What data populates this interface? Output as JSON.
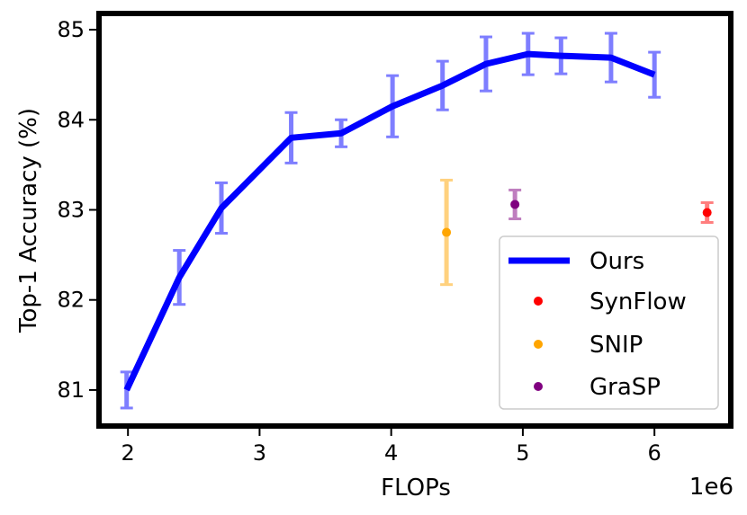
{
  "chart_data": {
    "type": "line",
    "xlabel": "FLOPs",
    "ylabel": "Top-1 Accuracy (%)",
    "x_offset_label": "1e6",
    "xlim": [
      1.78,
      6.58
    ],
    "ylim": [
      80.6,
      85.18
    ],
    "xticks": [
      2,
      3,
      4,
      5,
      6
    ],
    "xtick_labels": [
      "2",
      "3",
      "4",
      "5",
      "6"
    ],
    "yticks": [
      81,
      82,
      83,
      84,
      85
    ],
    "ytick_labels": [
      "81",
      "82",
      "83",
      "84",
      "85"
    ],
    "grid": false,
    "legend_position": "lower-right",
    "series": [
      {
        "name": "Ours",
        "kind": "line",
        "color": "#0000ff",
        "x": [
          1.99,
          2.39,
          2.71,
          3.24,
          3.62,
          4.01,
          4.39,
          4.72,
          5.04,
          5.29,
          5.67,
          6.0
        ],
        "y": [
          81.0,
          82.25,
          83.02,
          83.8,
          83.85,
          84.15,
          84.38,
          84.62,
          84.73,
          84.71,
          84.69,
          84.5
        ],
        "err": [
          0.2,
          0.3,
          0.28,
          0.28,
          0.15,
          0.34,
          0.27,
          0.3,
          0.23,
          0.2,
          0.27,
          0.25
        ]
      },
      {
        "name": "SynFlow",
        "kind": "scatter",
        "color": "#ff0000",
        "x": [
          6.4
        ],
        "y": [
          82.97
        ],
        "err": [
          0.11
        ]
      },
      {
        "name": "SNIP",
        "kind": "scatter",
        "color": "#ffa500",
        "x": [
          4.42
        ],
        "y": [
          82.75
        ],
        "err": [
          0.58
        ]
      },
      {
        "name": "GraSP",
        "kind": "scatter",
        "color": "#800080",
        "x": [
          4.94
        ],
        "y": [
          83.06
        ],
        "err": [
          0.16
        ]
      }
    ]
  }
}
